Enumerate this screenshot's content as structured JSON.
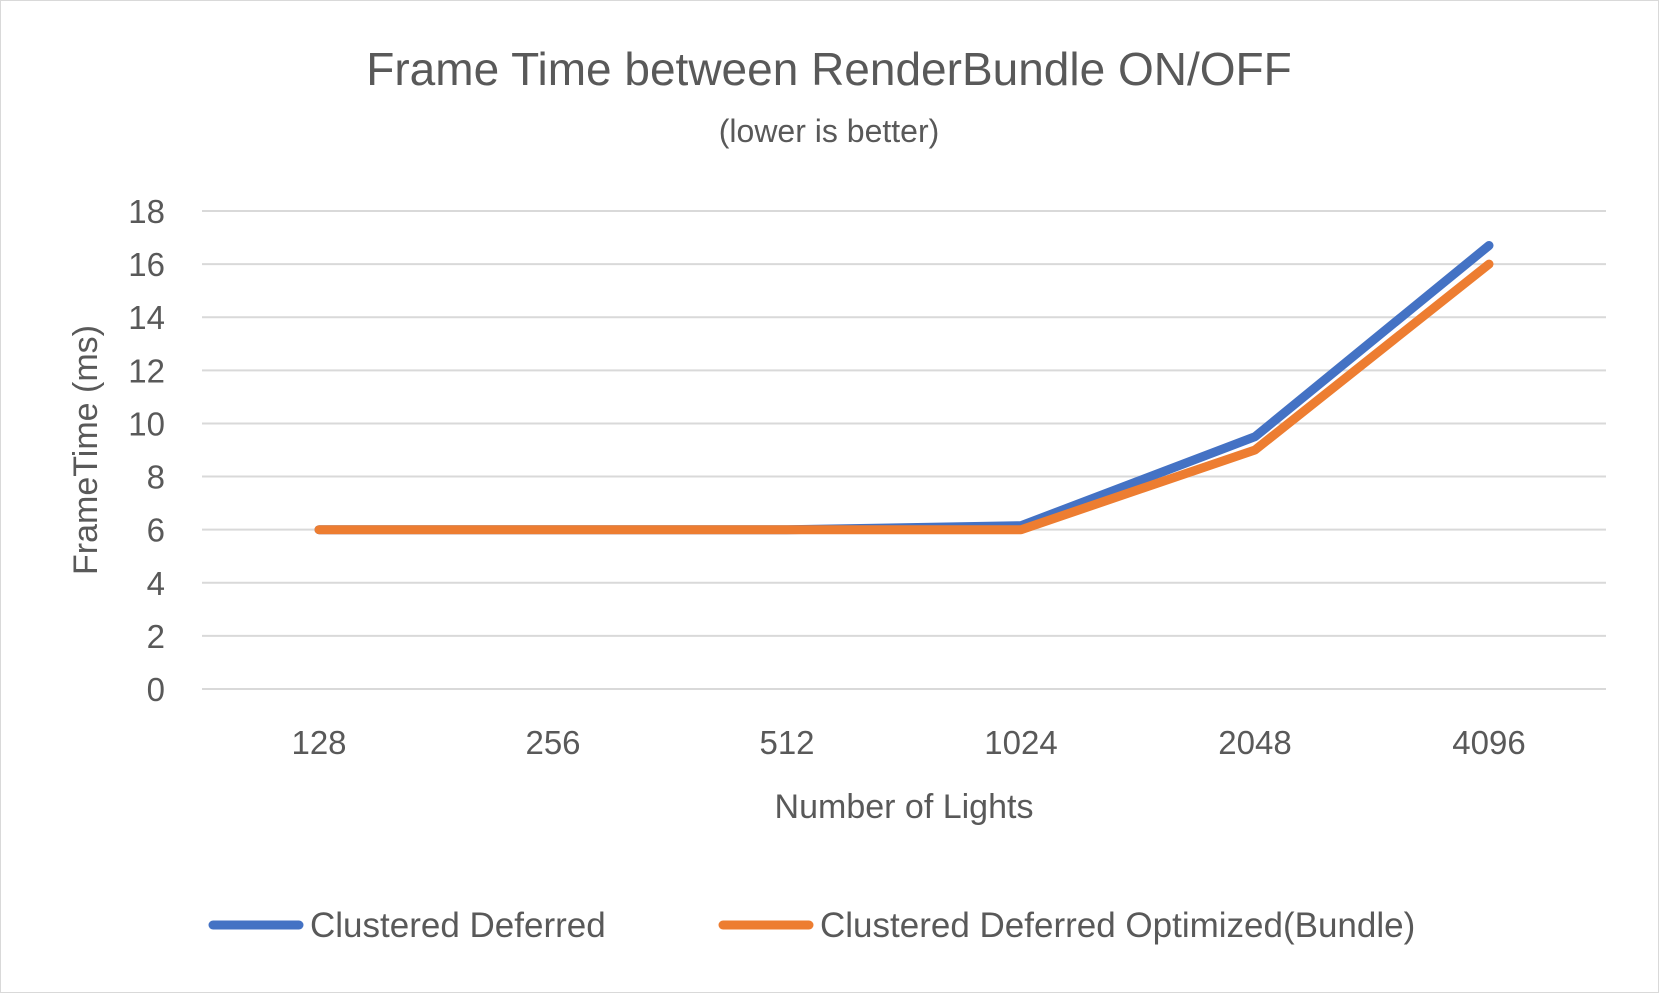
{
  "chart_data": {
    "type": "line",
    "title": "Frame Time between RenderBundle ON/OFF",
    "subtitle": "(lower is better)",
    "xlabel": "Number of Lights",
    "ylabel": "FrameTime (ms)",
    "categories": [
      "128",
      "256",
      "512",
      "1024",
      "2048",
      "4096"
    ],
    "ylim": [
      0,
      18
    ],
    "yticks": [
      "0",
      "2",
      "4",
      "6",
      "8",
      "10",
      "12",
      "14",
      "16",
      "18"
    ],
    "grid": true,
    "legend_position": "bottom",
    "series": [
      {
        "name": "Clustered Deferred",
        "color": "#4472c4",
        "values": [
          6.0,
          6.0,
          6.0,
          6.15,
          9.5,
          16.7
        ]
      },
      {
        "name": "Clustered Deferred Optimized(Bundle)",
        "color": "#ed7d31",
        "values": [
          6.0,
          6.0,
          6.0,
          6.0,
          9.0,
          16.0
        ]
      }
    ]
  }
}
